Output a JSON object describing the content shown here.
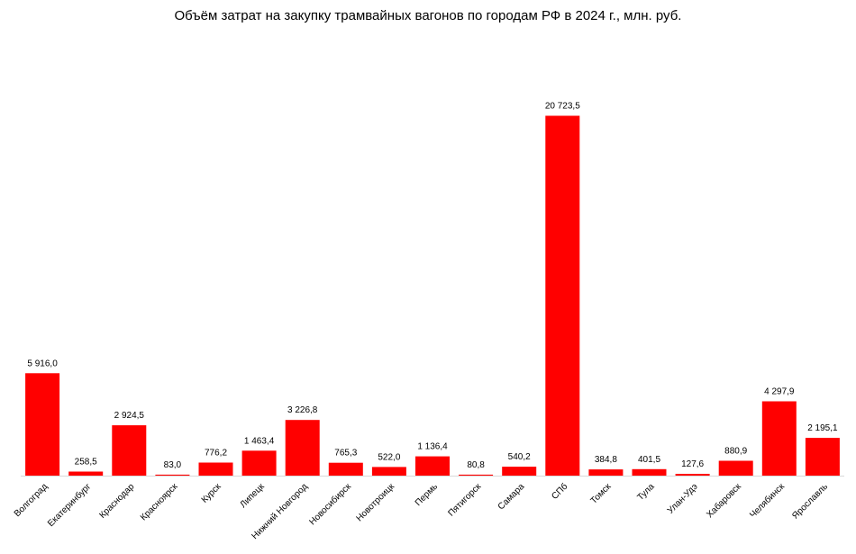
{
  "chart_data": {
    "type": "bar",
    "title": "Объём затрат на закупку трамвайных вагонов по городам РФ в 2024 г., млн. руб.",
    "xlabel": "",
    "ylabel": "",
    "ylim": [
      0,
      21000
    ],
    "grid": false,
    "bar_color": "#ff0000",
    "categories": [
      "Волгоград",
      "Екатеринбург",
      "Краснодар",
      "Красноярск",
      "Курск",
      "Липецк",
      "Нижний Новгород",
      "Новосибирск",
      "Новотроицк",
      "Пермь",
      "Пятигорск",
      "Самара",
      "СПб",
      "Томск",
      "Тула",
      "Улан-Удэ",
      "Хабаровск",
      "Челябинск",
      "Ярославль"
    ],
    "values": [
      5916.0,
      258.5,
      2924.5,
      83.0,
      776.2,
      1463.4,
      3226.8,
      765.3,
      522.0,
      1136.4,
      80.8,
      540.2,
      20723.5,
      384.8,
      401.5,
      127.6,
      880.9,
      4297.9,
      2195.1
    ],
    "data_labels": [
      "5 916,0",
      "258,5",
      "2 924,5",
      "83,0",
      "776,2",
      "1 463,4",
      "3 226,8",
      "765,3",
      "522,0",
      "1 136,4",
      "80,8",
      "540,2",
      "20 723,5",
      "384,8",
      "401,5",
      "127,6",
      "880,9",
      "4 297,9",
      "2 195,1"
    ]
  }
}
